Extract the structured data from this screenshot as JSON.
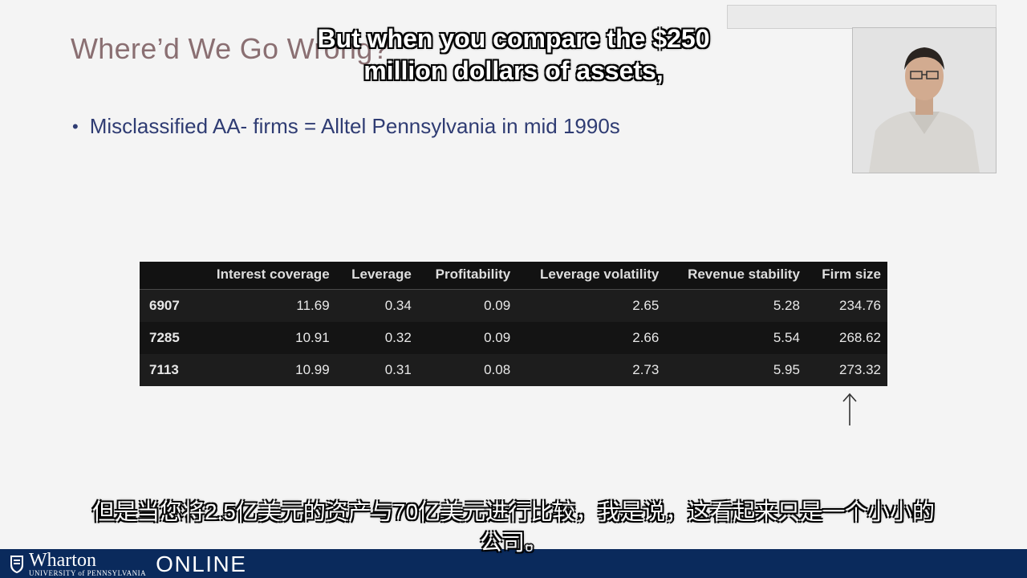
{
  "slide": {
    "title": "Where’d We Go Wrong?",
    "bullet": "Misclassified AA- firms = Alltel Pennsylvania in mid 1990s"
  },
  "table": {
    "columns": [
      "",
      "Interest coverage",
      "Leverage",
      "Profitability",
      "Leverage volatility",
      "Revenue stability",
      "Firm size"
    ],
    "rows": [
      [
        "6907",
        "11.69",
        "0.34",
        "0.09",
        "2.65",
        "5.28",
        "234.76"
      ],
      [
        "7285",
        "10.91",
        "0.32",
        "0.09",
        "2.66",
        "5.54",
        "268.62"
      ],
      [
        "7113",
        "10.99",
        "0.31",
        "0.08",
        "2.73",
        "5.95",
        "273.32"
      ]
    ]
  },
  "subtitles": {
    "en_line1": "But when you compare the $250",
    "en_line2": "million dollars of assets,",
    "zh_line1": "但是当您将2.5亿美元的资产与70亿美元进行比较，我是说，这看起来只是一个小小的",
    "zh_line2": "公司。"
  },
  "footer": {
    "logo_word": "Wharton",
    "logo_university": "UNIVERSITY of PENNSYLVANIA",
    "logo_online": "ONLINE"
  },
  "colors": {
    "title": "#8a6f72",
    "bullet": "#2f3c73",
    "footer": "#0a2a5c",
    "table_bg": "#121212"
  }
}
